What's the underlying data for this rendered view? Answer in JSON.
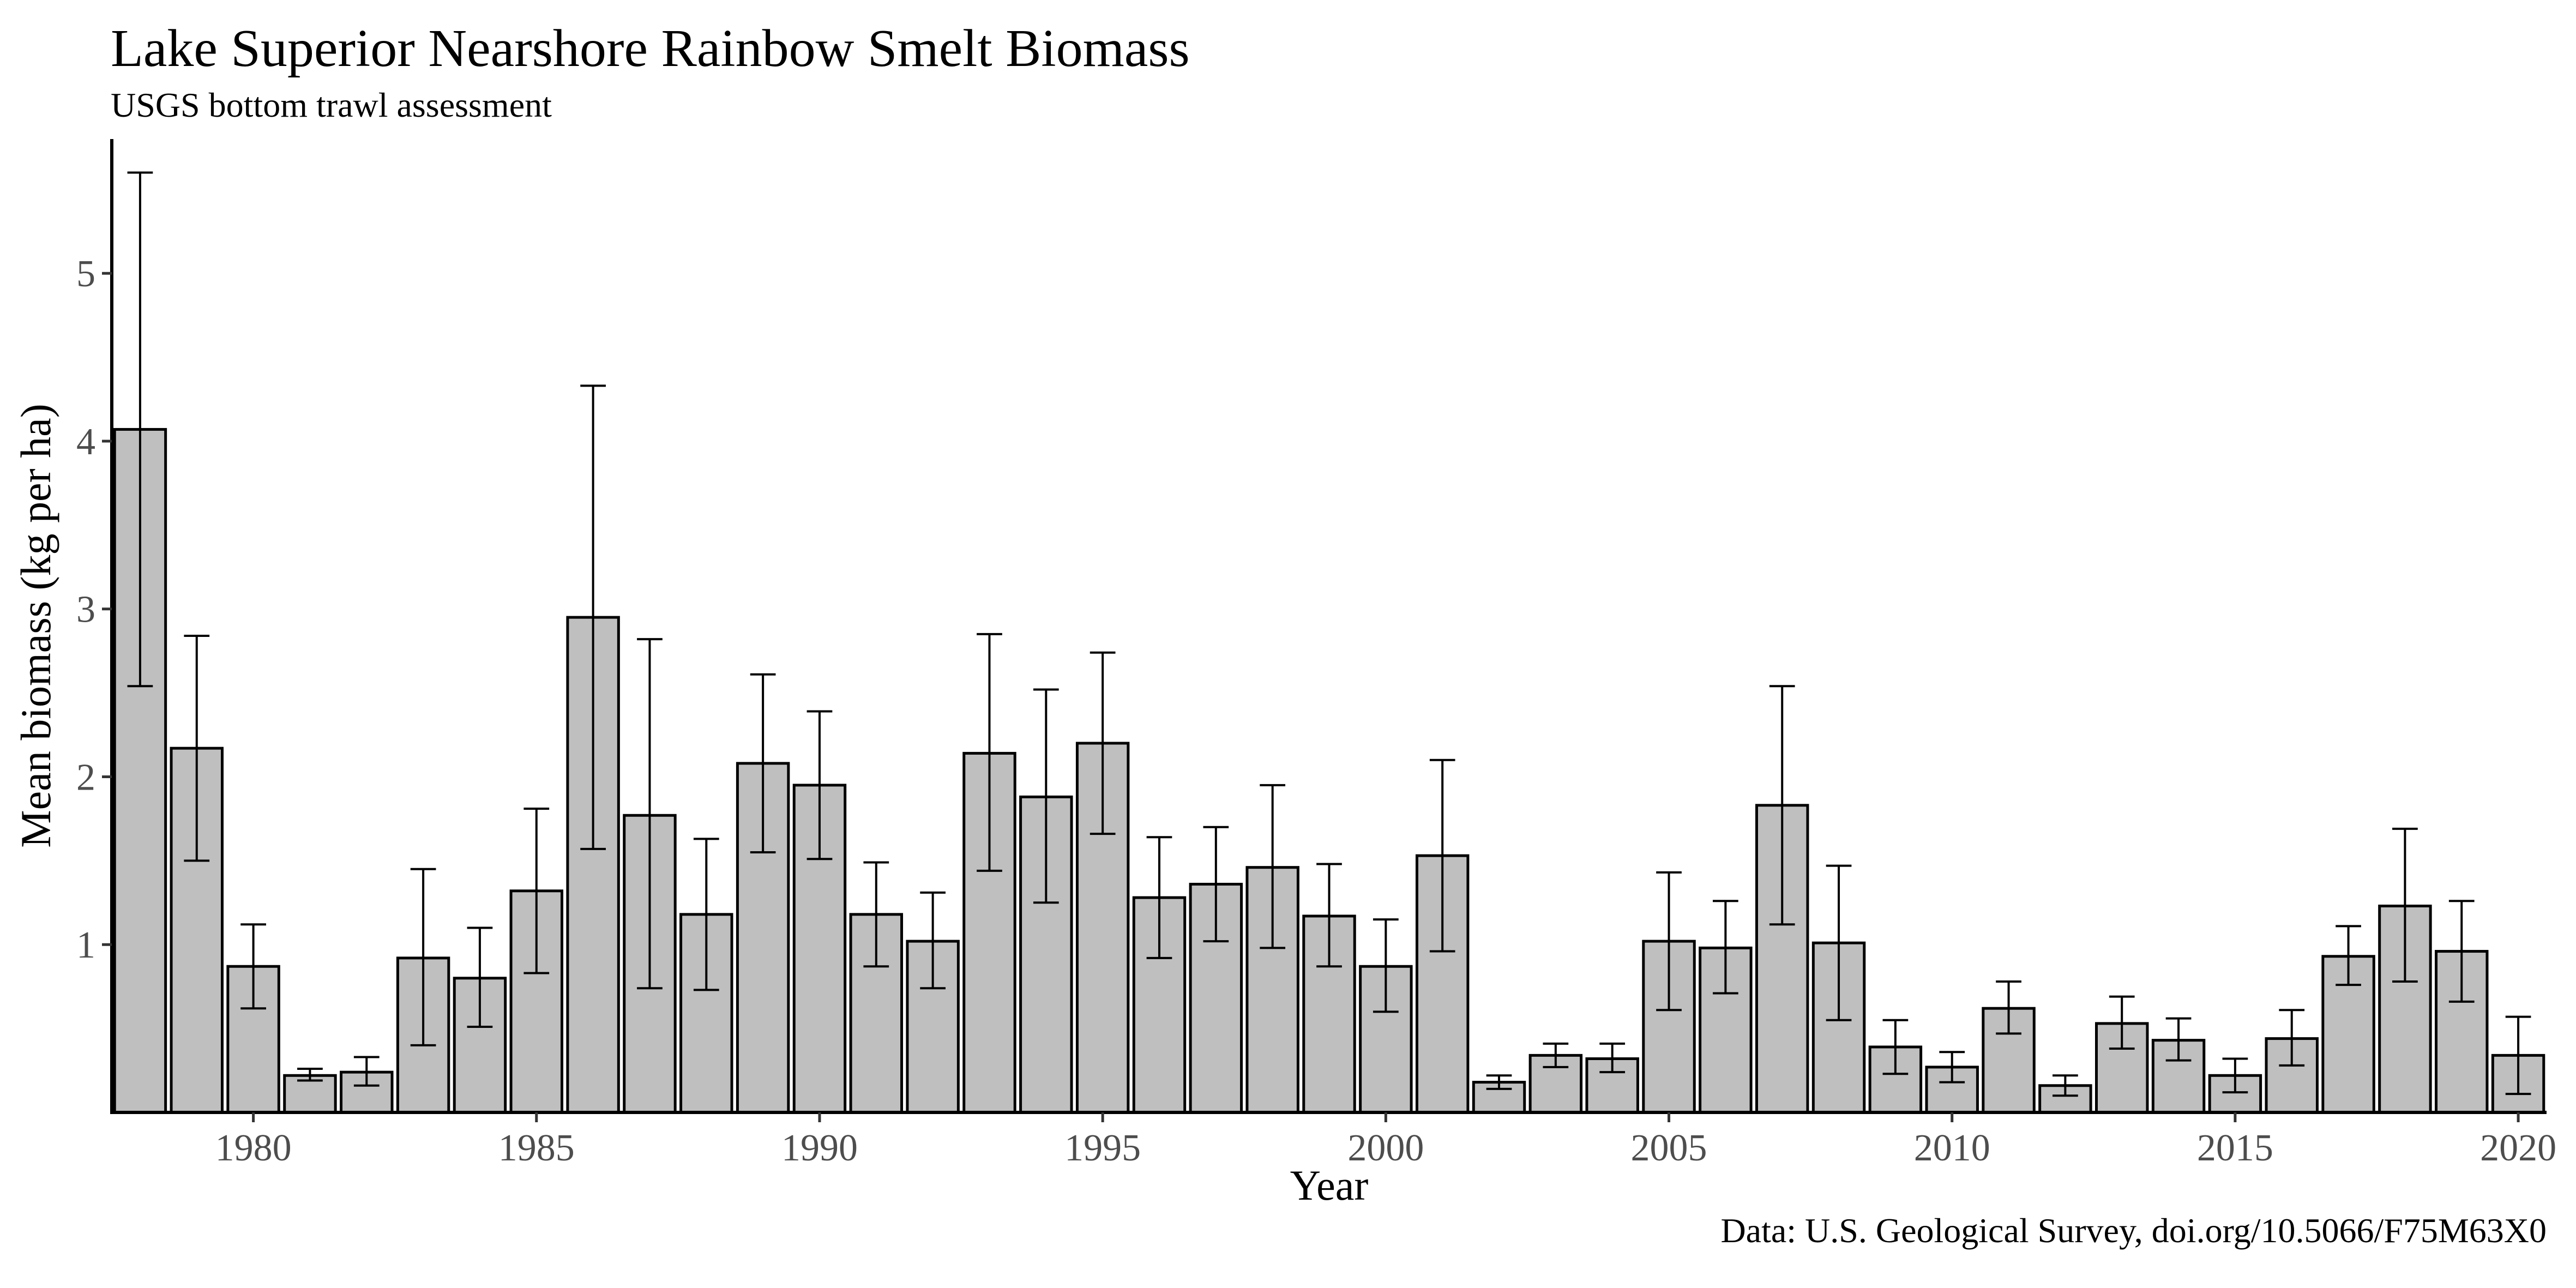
{
  "chart_data": {
    "type": "bar",
    "title": "Lake Superior Nearshore Rainbow Smelt Biomass",
    "subtitle": "USGS bottom trawl assessment",
    "caption": "Data: U.S. Geological Survey, doi.org/10.5066/F75M63X0",
    "xlabel": "Year",
    "ylabel": "Mean biomass (kg per ha)",
    "x_ticks": [
      1980,
      1985,
      1990,
      1995,
      2000,
      2005,
      2010,
      2015,
      2020
    ],
    "y_ticks": [
      1,
      2,
      3,
      4,
      5
    ],
    "xlim": [
      1977.5,
      2020.5
    ],
    "ylim": [
      0,
      5.8
    ],
    "grid": false,
    "error_bars": true,
    "categories": [
      1978,
      1979,
      1980,
      1981,
      1982,
      1983,
      1984,
      1985,
      1986,
      1987,
      1988,
      1989,
      1990,
      1991,
      1992,
      1993,
      1994,
      1995,
      1996,
      1997,
      1998,
      1999,
      2000,
      2001,
      2002,
      2003,
      2004,
      2005,
      2006,
      2007,
      2008,
      2009,
      2010,
      2011,
      2012,
      2013,
      2014,
      2015,
      2016,
      2017,
      2018,
      2019,
      2020
    ],
    "values": [
      4.07,
      2.17,
      0.87,
      0.22,
      0.24,
      0.92,
      0.8,
      1.32,
      2.95,
      1.77,
      1.18,
      2.08,
      1.95,
      1.18,
      1.02,
      2.14,
      1.88,
      2.2,
      1.28,
      1.36,
      1.46,
      1.17,
      0.87,
      1.53,
      0.18,
      0.34,
      0.32,
      1.02,
      0.98,
      1.83,
      1.01,
      0.39,
      0.27,
      0.62,
      0.16,
      0.53,
      0.43,
      0.22,
      0.44,
      0.93,
      1.23,
      0.96,
      0.34
    ],
    "error_lower": [
      2.54,
      1.5,
      0.62,
      0.19,
      0.16,
      0.4,
      0.51,
      0.83,
      1.57,
      0.74,
      0.73,
      1.55,
      1.51,
      0.87,
      0.74,
      1.44,
      1.25,
      1.66,
      0.92,
      1.02,
      0.98,
      0.87,
      0.6,
      0.96,
      0.14,
      0.27,
      0.24,
      0.61,
      0.71,
      1.12,
      0.55,
      0.23,
      0.18,
      0.47,
      0.1,
      0.38,
      0.31,
      0.12,
      0.28,
      0.76,
      0.78,
      0.66,
      0.11
    ],
    "error_upper": [
      5.6,
      2.84,
      1.12,
      0.26,
      0.33,
      1.45,
      1.1,
      1.81,
      4.33,
      2.82,
      1.63,
      2.61,
      2.39,
      1.49,
      1.31,
      2.85,
      2.52,
      2.74,
      1.64,
      1.7,
      1.95,
      1.48,
      1.15,
      2.1,
      0.22,
      0.41,
      0.41,
      1.43,
      1.26,
      2.54,
      1.47,
      0.55,
      0.36,
      0.78,
      0.22,
      0.69,
      0.56,
      0.32,
      0.61,
      1.11,
      1.69,
      1.26,
      0.57
    ],
    "bar_fill": "#bfbfbf",
    "bar_stroke": "#000000"
  }
}
